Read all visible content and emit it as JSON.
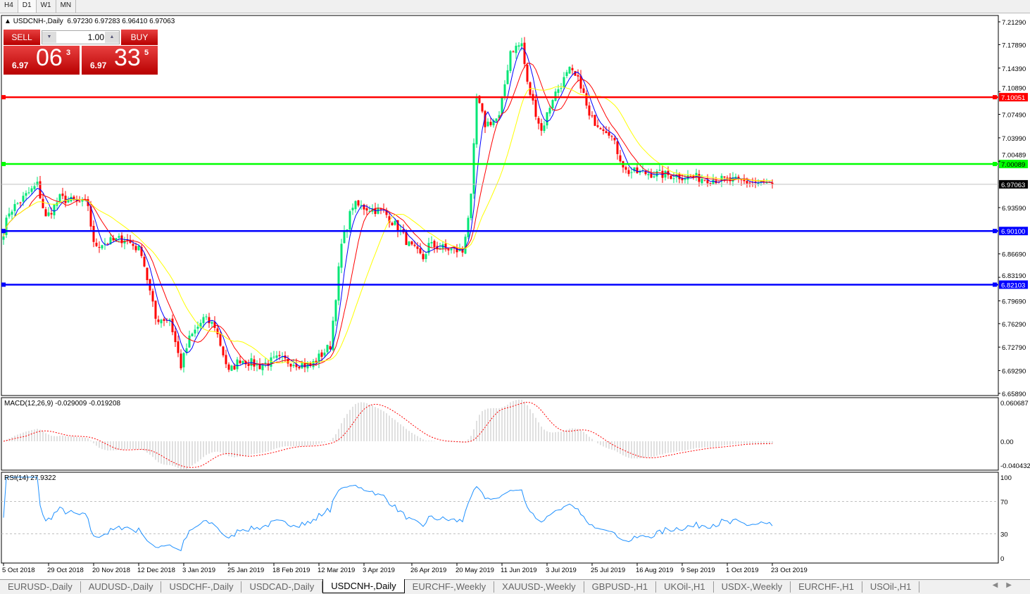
{
  "timeframes": [
    "H4",
    "D1",
    "W1",
    "MN"
  ],
  "active_timeframe": "D1",
  "chart": {
    "title": "USDCNH-,Daily",
    "ohlc": "6.97230 6.97283 6.96410 6.97063"
  },
  "trade_panel": {
    "sell_label": "SELL",
    "buy_label": "BUY",
    "lot": "1.00",
    "sell_small": "6.97",
    "sell_big": "06",
    "sell_sup": "3",
    "buy_small": "6.97",
    "buy_big": "33",
    "buy_sup": "5",
    "color": "#d00000"
  },
  "price_axis": [
    "7.21290",
    "7.17890",
    "7.14390",
    "7.10890",
    "7.07490",
    "7.03990",
    "7.00489",
    "6.93590",
    "6.86690",
    "6.83190",
    "6.79690",
    "6.76290",
    "6.72790",
    "6.69290",
    "6.65890"
  ],
  "levels": [
    {
      "value": "7.10051",
      "color": "#ff0000"
    },
    {
      "value": "7.00089",
      "color": "#00ff00"
    },
    {
      "value": "6.90100",
      "color": "#0000ff"
    },
    {
      "value": "6.82103",
      "color": "#0000ff"
    }
  ],
  "current_price": "6.97063",
  "macd": {
    "label": "MACD(12,26,9) -0.029009 -0.019208",
    "axis": [
      "0.060687",
      "0.00",
      "-0.040432"
    ]
  },
  "rsi": {
    "label": "RSI(14) 27.9322",
    "axis": [
      "100",
      "70",
      "30",
      "0"
    ]
  },
  "date_axis": [
    "5 Oct 2018",
    "29 Oct 2018",
    "20 Nov 2018",
    "12 Dec 2018",
    "3 Jan 2019",
    "25 Jan 2019",
    "18 Feb 2019",
    "12 Mar 2019",
    "3 Apr 2019",
    "26 Apr 2019",
    "20 May 2019",
    "11 Jun 2019",
    "3 Jul 2019",
    "25 Jul 2019",
    "16 Aug 2019",
    "9 Sep 2019",
    "1 Oct 2019",
    "23 Oct 2019"
  ],
  "price_path": [
    [
      "5 Oct 2018",
      6.9
    ],
    [
      "9 Oct 2018",
      6.93
    ],
    [
      "23 Oct 2018",
      6.97
    ],
    [
      "26 Oct 2018",
      6.92
    ],
    [
      "2 Nov 2018",
      6.95
    ],
    [
      "16 Nov 2018",
      6.94
    ],
    [
      "20 Nov 2018",
      6.88
    ],
    [
      "5 Dec 2018",
      6.89
    ],
    [
      "13 Dec 2018",
      6.87
    ],
    [
      "20 Dec 2018",
      6.77
    ],
    [
      "27 Dec 2018",
      6.77
    ],
    [
      "2 Jan 2019",
      6.7
    ],
    [
      "7 Jan 2019",
      6.74
    ],
    [
      "14 Jan 2019",
      6.77
    ],
    [
      "18 Jan 2019",
      6.76
    ],
    [
      "25 Jan 2019",
      6.69
    ],
    [
      "31 Jan 2019",
      6.71
    ],
    [
      "11 Feb 2019",
      6.7
    ],
    [
      "19 Feb 2019",
      6.71
    ],
    [
      "7 Mar 2019",
      6.7
    ],
    [
      "18 Mar 2019",
      6.73
    ],
    [
      "22 Mar 2019",
      6.88
    ],
    [
      "28 Mar 2019",
      6.94
    ],
    [
      "12 Apr 2019",
      6.93
    ],
    [
      "22 Apr 2019",
      6.9
    ],
    [
      "25 Apr 2019",
      6.88
    ],
    [
      "2 May 2019",
      6.86
    ],
    [
      "6 May 2019",
      6.88
    ],
    [
      "22 May 2019",
      6.87
    ],
    [
      "27 May 2019",
      6.95
    ],
    [
      "29 May 2019",
      7.1
    ],
    [
      "3 Jun 2019",
      7.06
    ],
    [
      "10 Jun 2019",
      7.07
    ],
    [
      "14 Jun 2019",
      7.17
    ],
    [
      "20 Jun 2019",
      7.18
    ],
    [
      "24 Jun 2019",
      7.12
    ],
    [
      "1 Jul 2019",
      7.05
    ],
    [
      "5 Jul 2019",
      7.1
    ],
    [
      "15 Jul 2019",
      7.14
    ],
    [
      "19 Jul 2019",
      7.12
    ],
    [
      "24 Jul 2019",
      7.07
    ],
    [
      "2 Aug 2019",
      7.05
    ],
    [
      "12 Aug 2019",
      6.99
    ],
    [
      "23 Oct 2019",
      6.97063
    ]
  ],
  "moving_average_colors": [
    "#0000ff",
    "#ff0000",
    "#ffff00"
  ],
  "up_color": "#00e676",
  "down_color": "#ff0000",
  "symbol_tabs": [
    "EURUSD-,Daily",
    "AUDUSD-,Daily",
    "USDCHF-,Daily",
    "USDCAD-,Daily",
    "USDCNH-,Daily",
    "EURCHF-,Weekly",
    "XAUUSD-,Weekly",
    "GBPUSD-,H1",
    "UKOil-,H1",
    "USDX-,Weekly",
    "EURCHF-,H1",
    "USOil-,H1"
  ],
  "active_symbol_tab": "USDCNH-,Daily"
}
